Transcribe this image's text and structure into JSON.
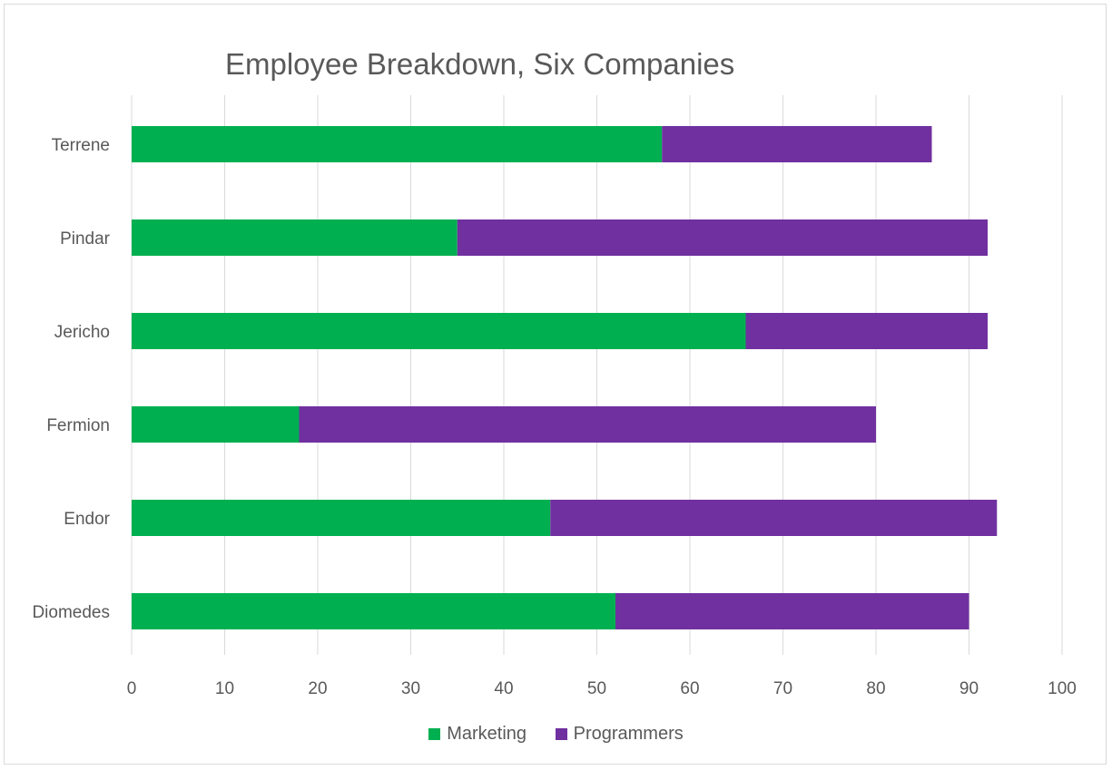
{
  "chart_data": {
    "type": "bar",
    "orientation": "horizontal",
    "stacked": true,
    "title": "Employee Breakdown, Six Companies",
    "categories": [
      "Terrene",
      "Pindar",
      "Jericho",
      "Fermion",
      "Endor",
      "Diomedes"
    ],
    "series": [
      {
        "name": "Marketing",
        "color": "#00b050",
        "values": [
          57,
          35,
          66,
          18,
          45,
          52
        ]
      },
      {
        "name": "Programmers",
        "color": "#7030a0",
        "values": [
          29,
          57,
          26,
          62,
          48,
          38
        ]
      }
    ],
    "xlim": [
      0,
      100
    ],
    "x_ticks": [
      0,
      10,
      20,
      30,
      40,
      50,
      60,
      70,
      80,
      90,
      100
    ],
    "grid": "vertical",
    "legend": "bottom"
  }
}
